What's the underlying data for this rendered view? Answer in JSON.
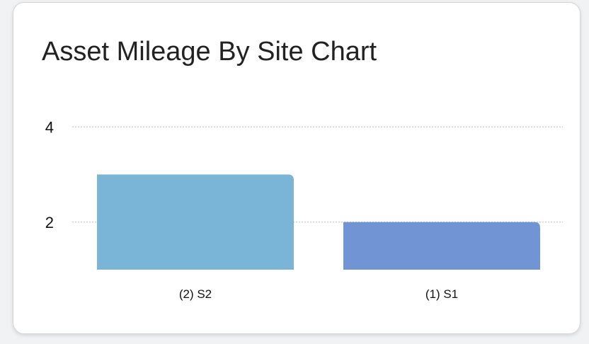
{
  "chart_data": {
    "type": "bar",
    "title": "Asset Mileage By Site Chart",
    "categories": [
      "(2) S2",
      "(1) S1"
    ],
    "values": [
      3,
      2
    ],
    "colors": [
      "#7ab5d8",
      "#7194d5"
    ],
    "yticks": [
      2,
      4
    ],
    "ylim": [
      1,
      4.5
    ],
    "grid": true,
    "xlabel": "",
    "ylabel": ""
  }
}
